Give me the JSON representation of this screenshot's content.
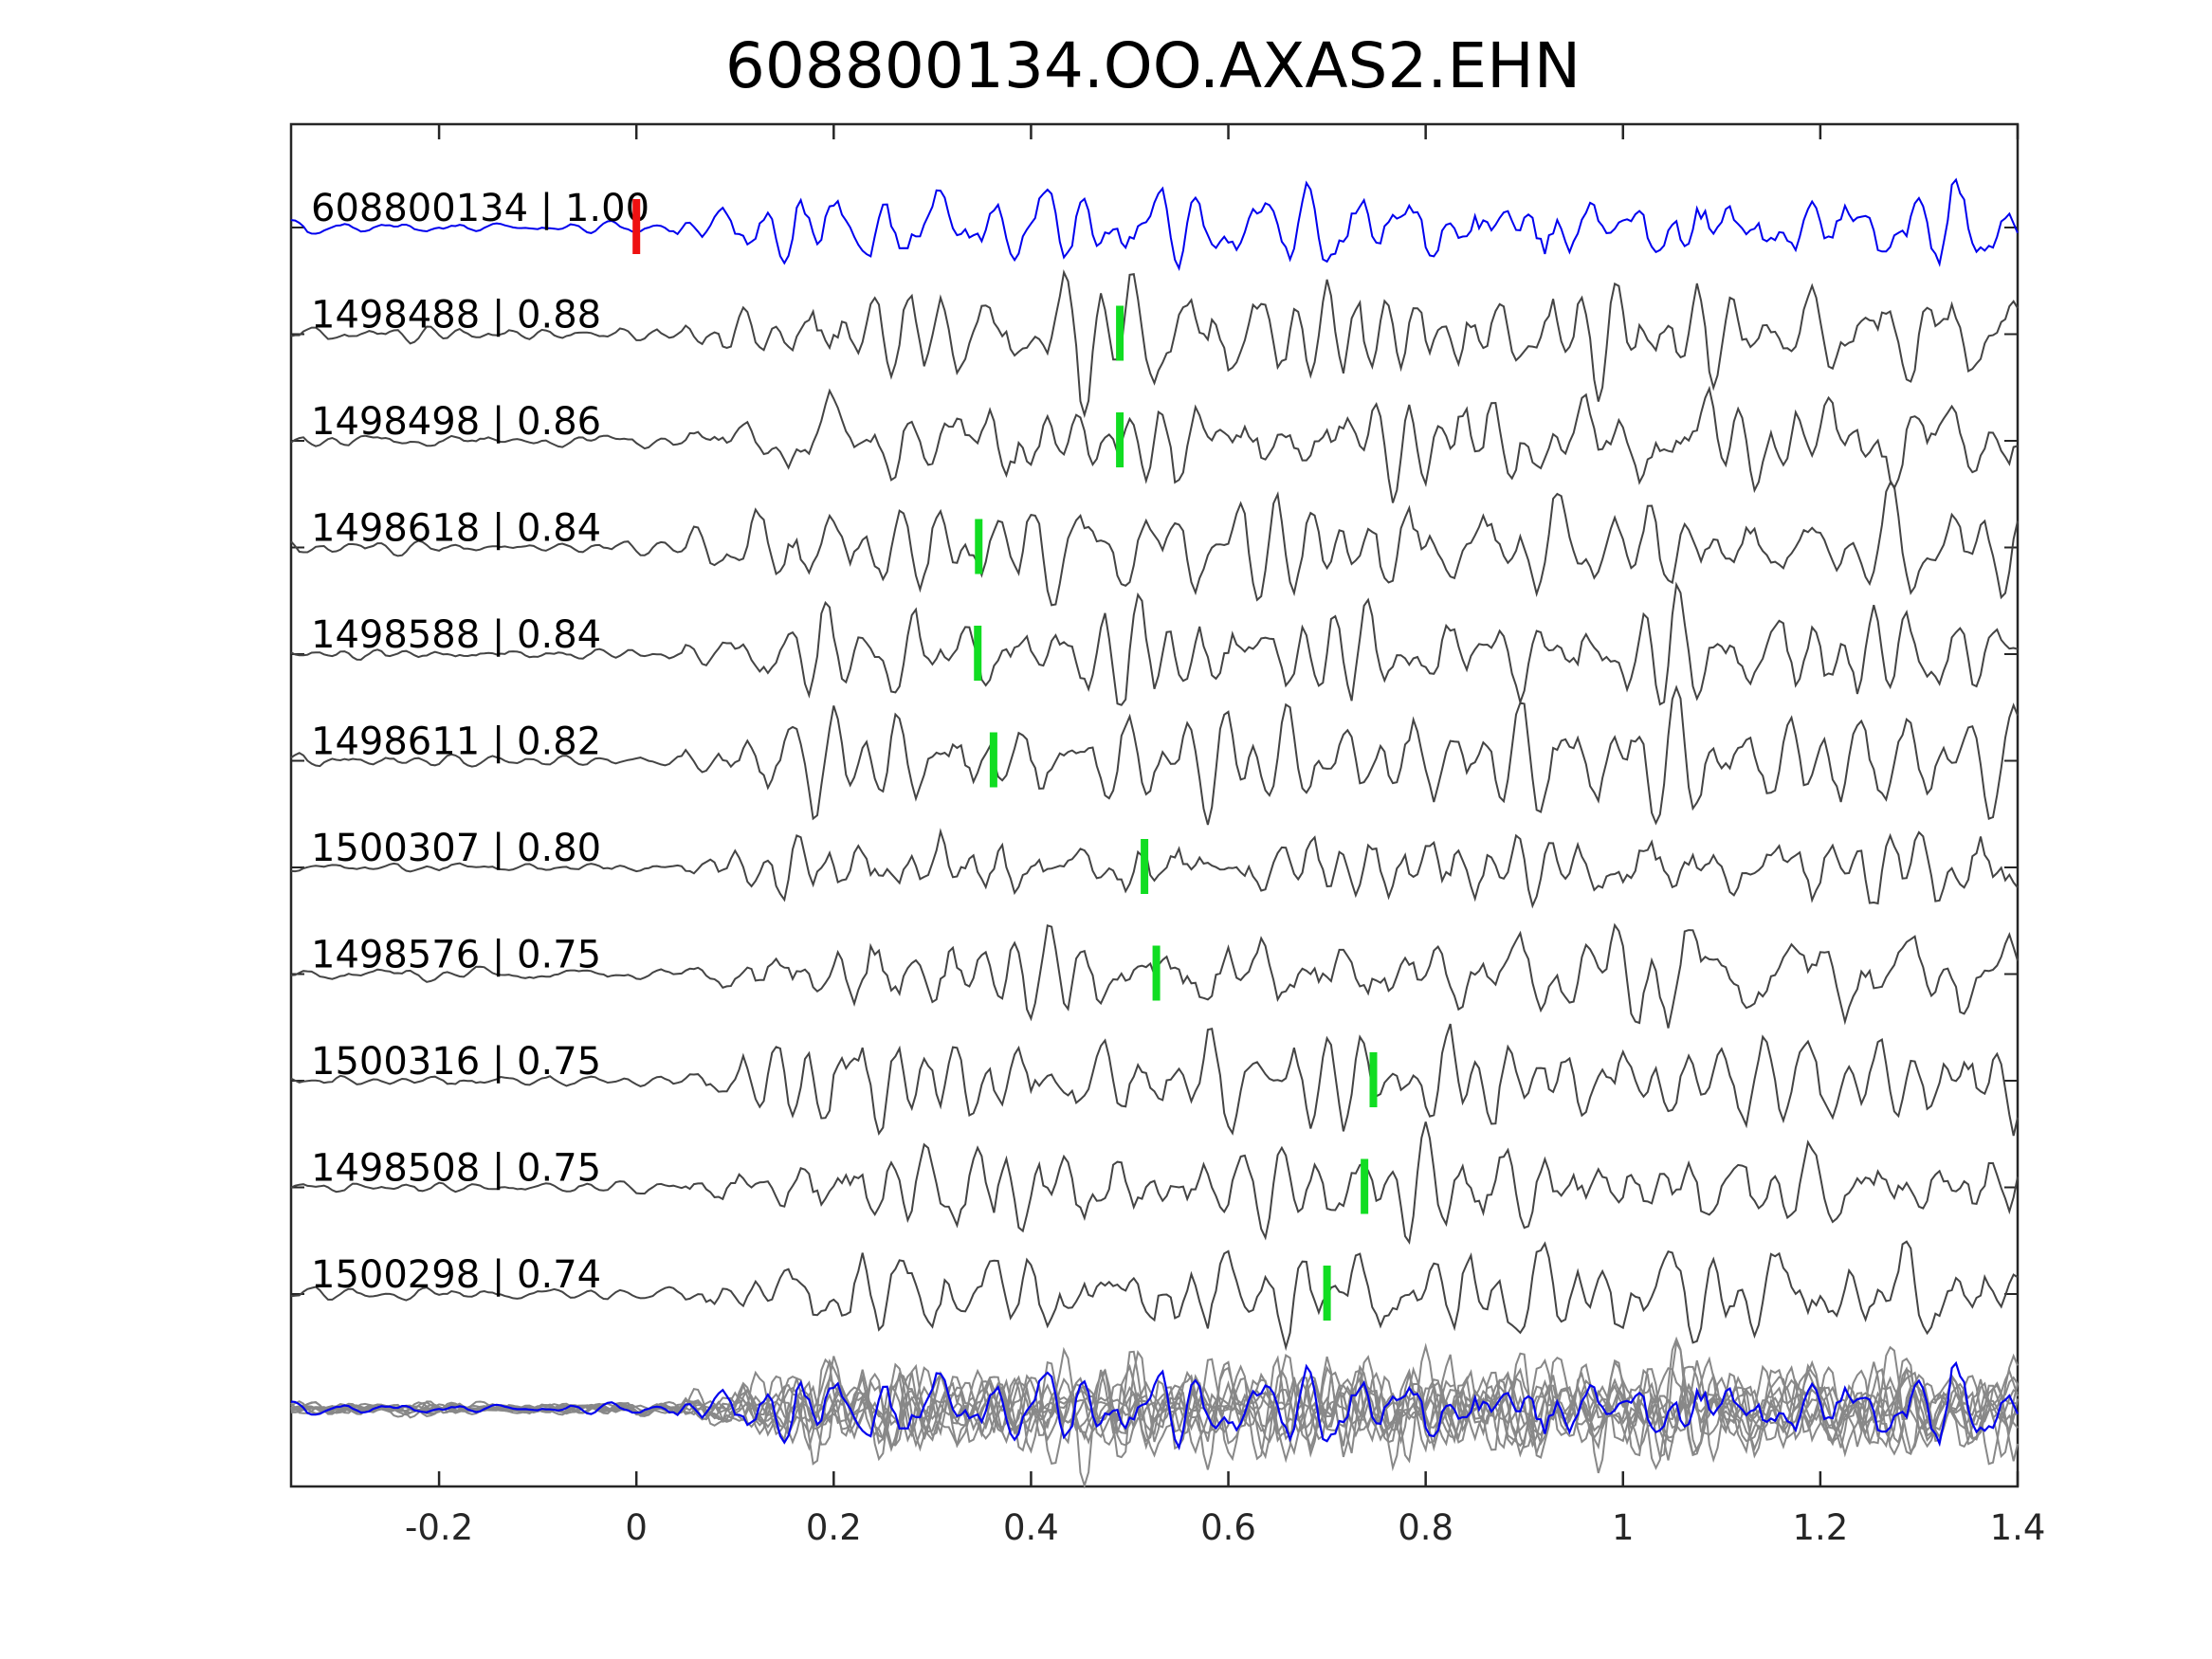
{
  "chart_data": {
    "type": "line",
    "title": "608800134.OO.AXAS2.EHN",
    "xlabel": "",
    "ylabel": "",
    "xlim": [
      -0.35,
      1.4
    ],
    "xticks": [
      -0.2,
      0,
      0.2,
      0.4,
      0.6,
      0.8,
      1,
      1.2,
      1.4
    ],
    "xtick_labels": [
      "-0.2",
      "0",
      "0.2",
      "0.4",
      "0.6",
      "0.8",
      "1",
      "1.2",
      "1.4"
    ],
    "grid": false,
    "colors": {
      "template": "#0000ee",
      "neighbor": "#444444",
      "stack": "#888888",
      "template_pick": "#ee1111",
      "neighbor_pick": "#11dd22",
      "axes": "#262626"
    },
    "template": {
      "label": "608800134 | 1.00",
      "pick_time": 0.0
    },
    "traces": [
      {
        "label": "1498488 | 0.88",
        "pick_time": 0.49
      },
      {
        "label": "1498498 | 0.86",
        "pick_time": 0.49
      },
      {
        "label": "1498618 | 0.84",
        "pick_time": 0.347
      },
      {
        "label": "1498588 | 0.84",
        "pick_time": 0.346
      },
      {
        "label": "1498611 | 0.82",
        "pick_time": 0.362
      },
      {
        "label": "1500307 | 0.80",
        "pick_time": 0.515
      },
      {
        "label": "1498576 | 0.75",
        "pick_time": 0.527
      },
      {
        "label": "1500316 | 0.75",
        "pick_time": 0.747
      },
      {
        "label": "1498508 | 0.75",
        "pick_time": 0.738
      },
      {
        "label": "1500298 | 0.74",
        "pick_time": 0.7
      }
    ]
  }
}
